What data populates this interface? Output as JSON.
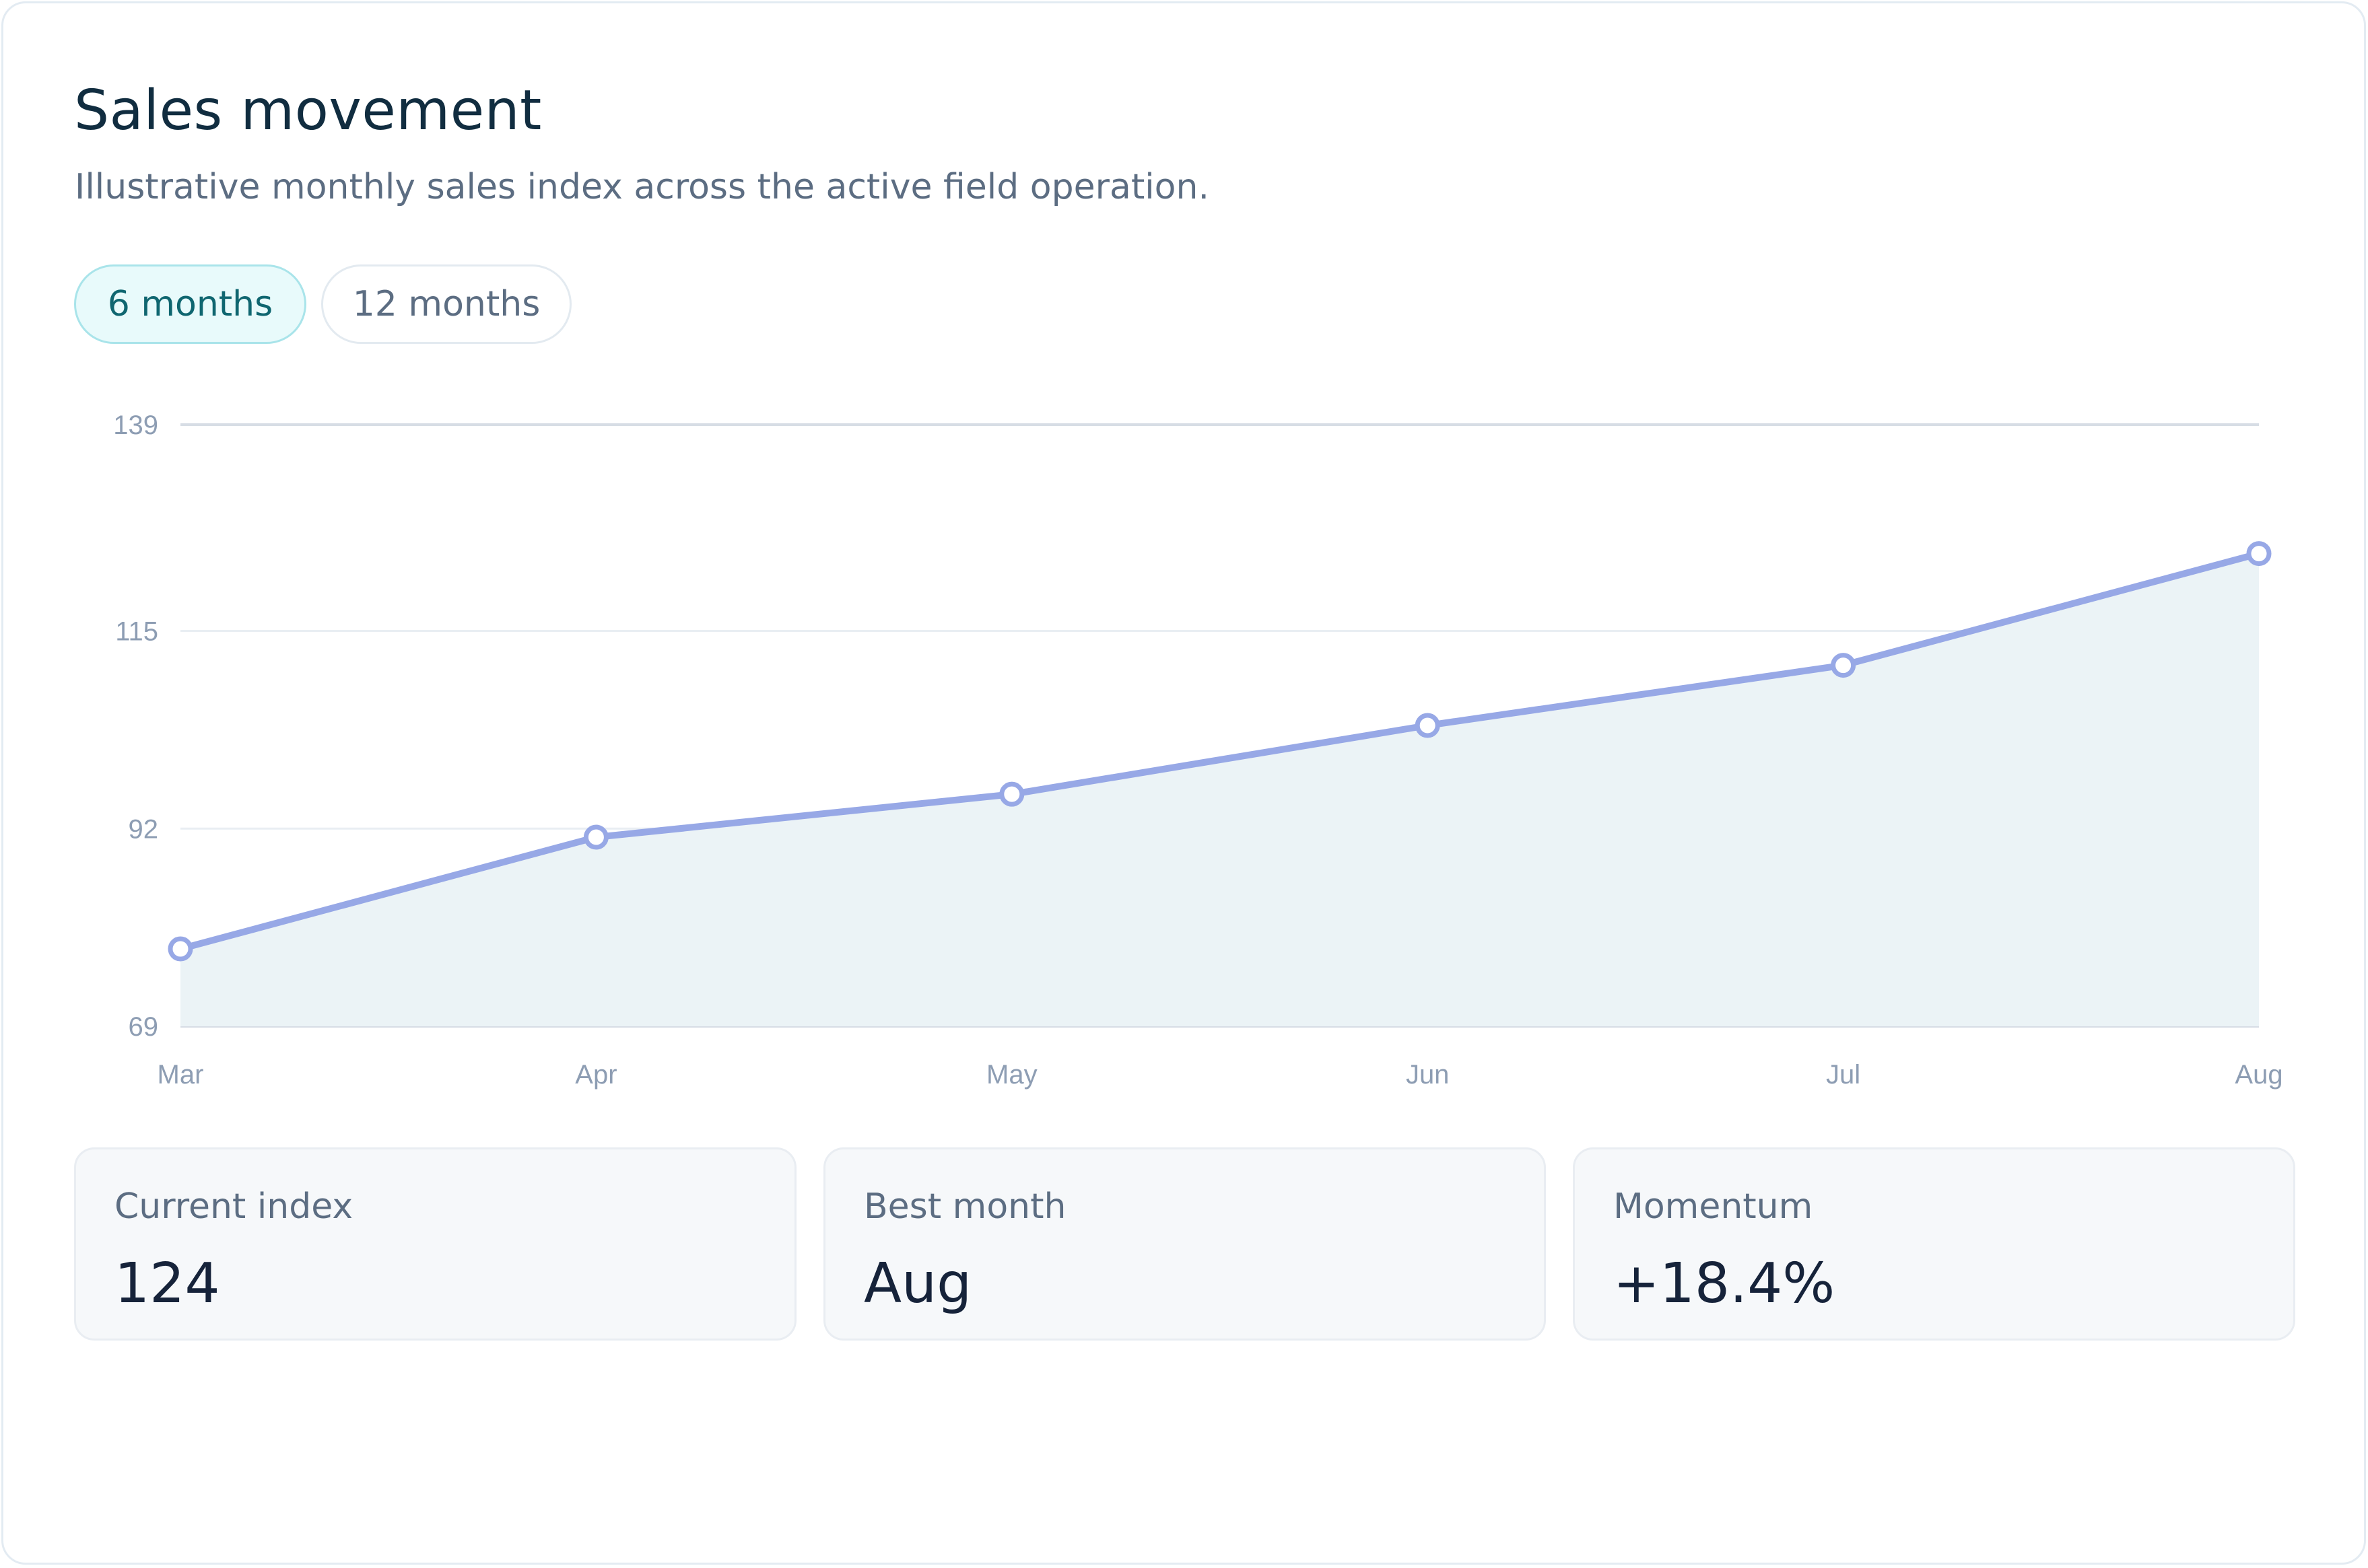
{
  "panel": {
    "title": "Sales movement",
    "subtitle": "Illustrative monthly sales index across the active field operation."
  },
  "range_toggle": {
    "options": [
      "6 months",
      "12 months"
    ],
    "selected": "6 months"
  },
  "chart_data": {
    "type": "area",
    "x": [
      "Mar",
      "Apr",
      "May",
      "Jun",
      "Jul",
      "Aug"
    ],
    "series": [
      {
        "values": [
          78,
          91,
          96,
          104,
          111,
          124
        ]
      }
    ],
    "y_ticks": [
      69,
      92,
      115,
      139
    ],
    "ylim": [
      69,
      139
    ],
    "grid": true,
    "line_color": "#97a8e6",
    "fill_color": "#ebf3f6"
  },
  "stats": [
    {
      "label": "Current index",
      "value": "124"
    },
    {
      "label": "Best month",
      "value": "Aug"
    },
    {
      "label": "Momentum",
      "value": "+18.4%"
    }
  ],
  "colors": {
    "accent": "#0f6670",
    "accent_bg": "#e8fafb",
    "title": "#112d40",
    "muted": "#5c6d82"
  }
}
